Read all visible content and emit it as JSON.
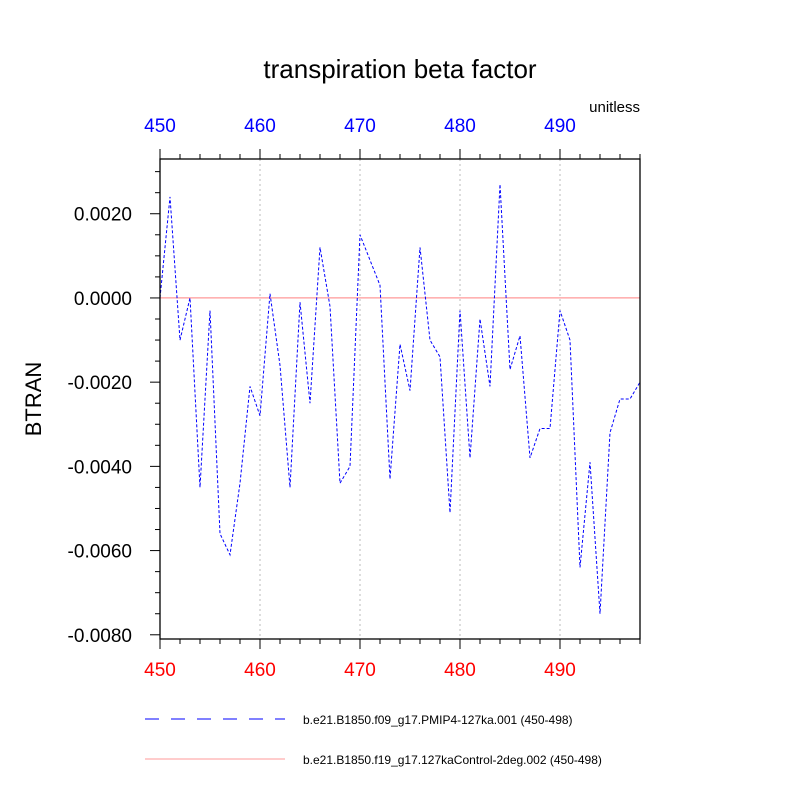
{
  "chart_data": {
    "type": "line",
    "title": "transpiration beta factor",
    "ylabel": "BTRAN",
    "units_label": "unitless",
    "xlim": [
      450,
      498
    ],
    "ylim": [
      -0.0081,
      0.0033
    ],
    "x_ticks": [
      450,
      460,
      470,
      480,
      490
    ],
    "x_tick_labels": [
      "450",
      "460",
      "470",
      "480",
      "490"
    ],
    "y_ticks": [
      0.002,
      0.0,
      -0.002,
      -0.004,
      -0.006,
      -0.008
    ],
    "y_tick_labels": [
      "0.0020",
      "0.0000",
      "-0.0020",
      "-0.0040",
      "-0.0060",
      "-0.0080"
    ],
    "grid": "vertical dotted at major x ticks",
    "legend_position": "bottom",
    "colors": {
      "top_axis_labels": "#0000ff",
      "bottom_axis_labels": "#ff0000",
      "series_pmip": "#0000ff",
      "series_control": "#ff9999",
      "grid": "#bbbbbb"
    },
    "series": [
      {
        "name": "b.e21.B1850.f09_g17.PMIP4-127ka.001 (450-498)",
        "style": "dashed",
        "x": [
          450,
          451,
          452,
          453,
          454,
          455,
          456,
          457,
          458,
          459,
          460,
          461,
          462,
          463,
          464,
          465,
          466,
          467,
          468,
          469,
          470,
          471,
          472,
          473,
          474,
          475,
          476,
          477,
          478,
          479,
          480,
          481,
          482,
          483,
          484,
          485,
          486,
          487,
          488,
          489,
          490,
          491,
          492,
          493,
          494,
          495,
          496,
          497,
          498
        ],
        "values": [
          0.0,
          0.0024,
          -0.001,
          0.0,
          -0.0045,
          -0.0003,
          -0.0056,
          -0.0061,
          -0.0044,
          -0.0021,
          -0.0028,
          0.0001,
          -0.0016,
          -0.0045,
          -0.0001,
          -0.0025,
          0.0012,
          -0.0002,
          -0.0044,
          -0.004,
          0.0015,
          0.0009,
          0.0003,
          -0.0043,
          -0.0011,
          -0.0022,
          0.0012,
          -0.001,
          -0.0014,
          -0.0051,
          -0.0003,
          -0.0038,
          -0.0005,
          -0.0021,
          0.0027,
          -0.0017,
          -0.0009,
          -0.0038,
          -0.0031,
          -0.0031,
          -0.0003,
          -0.001,
          -0.0064,
          -0.0039,
          -0.0075,
          -0.0032,
          -0.0024,
          -0.0024,
          -0.002
        ]
      },
      {
        "name": "b.e21.B1850.f19_g17.127kaControl-2deg.002 (450-498)",
        "style": "solid",
        "x": [
          450,
          498
        ],
        "values": [
          0.0,
          0.0
        ]
      }
    ]
  }
}
